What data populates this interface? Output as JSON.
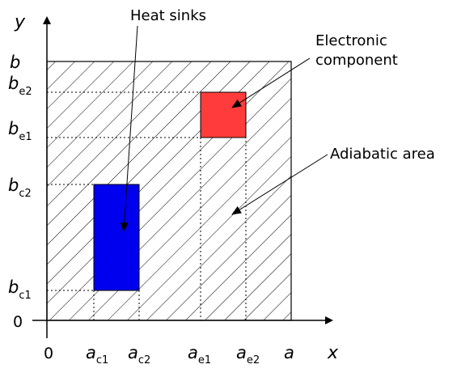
{
  "axes": {
    "x_label": "x",
    "y_label": "y",
    "origin_label_x": "0",
    "origin_label_y": "0"
  },
  "x_ticks": [
    {
      "main": "a",
      "sub": "c1"
    },
    {
      "main": "a",
      "sub": "c2"
    },
    {
      "main": "a",
      "sub": "e1"
    },
    {
      "main": "a",
      "sub": "e2"
    },
    {
      "main": "a",
      "sub": ""
    }
  ],
  "y_ticks": [
    {
      "main": "b",
      "sub": "c1"
    },
    {
      "main": "b",
      "sub": "c2"
    },
    {
      "main": "b",
      "sub": "e1"
    },
    {
      "main": "b",
      "sub": "e2"
    },
    {
      "main": "b",
      "sub": ""
    }
  ],
  "labels": {
    "heat_sinks": "Heat sinks",
    "electronic_component_line1": "Electronic",
    "electronic_component_line2": "component",
    "adiabatic_area": "Adiabatic area"
  },
  "colors": {
    "heat_sink": "#0000ee",
    "electronic_component": "#ff3b3b",
    "hatch": "#000000"
  }
}
